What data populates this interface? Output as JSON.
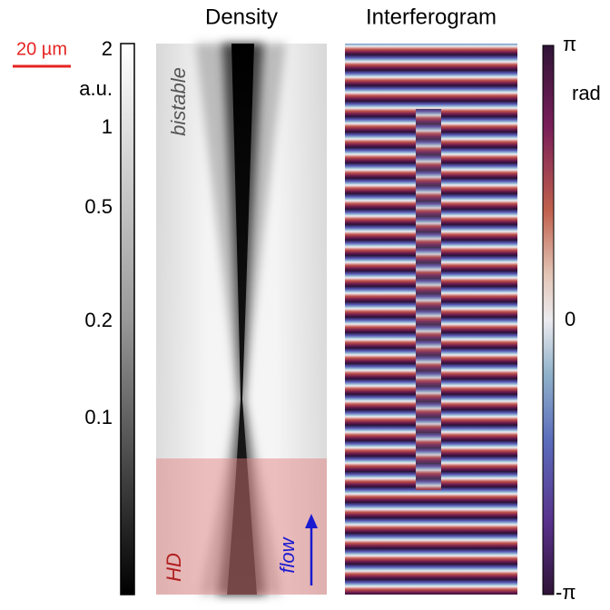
{
  "panels": {
    "density": {
      "title": "Density"
    },
    "interferogram": {
      "title": "Interferogram"
    }
  },
  "scale_bar": {
    "label": "20 µm"
  },
  "density_colorbar": {
    "unit": "a.u.",
    "ticks": [
      "2",
      "1",
      "0.5",
      "0.2",
      "0.1"
    ]
  },
  "phase_colorbar": {
    "unit": "rad",
    "ticks": [
      "π",
      "0",
      "-π"
    ]
  },
  "annotations": {
    "top_region": "bistable",
    "bottom_region": "HD",
    "arrow": "flow"
  }
}
